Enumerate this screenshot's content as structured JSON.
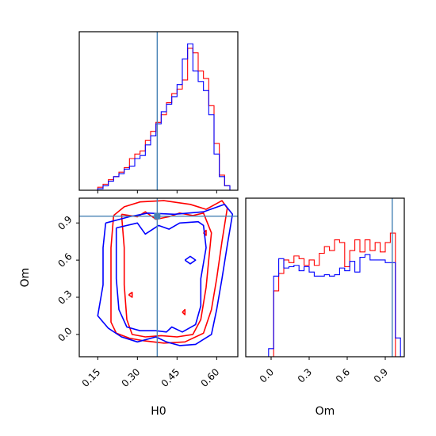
{
  "chart_data": {
    "type": "corner",
    "parameters": [
      "H0",
      "Om"
    ],
    "truth": {
      "H0": 0.375,
      "Om": 0.955
    },
    "colors": {
      "red": "#ff0000",
      "blue": "#0000ff",
      "truth": "#4682b4"
    },
    "panels": [
      {
        "id": "hist-H0",
        "type": "histogram",
        "xlim": [
          0.08,
          0.68
        ],
        "x_ticks": [
          0.15,
          0.3,
          0.45,
          0.6
        ],
        "bin_edges": [
          0.15,
          0.17,
          0.19,
          0.21,
          0.23,
          0.25,
          0.27,
          0.29,
          0.31,
          0.33,
          0.35,
          0.37,
          0.39,
          0.41,
          0.43,
          0.45,
          0.47,
          0.49,
          0.51,
          0.53,
          0.55,
          0.57,
          0.59,
          0.61,
          0.63,
          0.65
        ],
        "series": [
          {
            "color": "red",
            "values": [
              0.02,
              0.04,
              0.07,
              0.09,
              0.12,
              0.15,
              0.21,
              0.24,
              0.26,
              0.33,
              0.39,
              0.45,
              0.5,
              0.58,
              0.64,
              0.67,
              0.73,
              0.94,
              0.91,
              0.79,
              0.74,
              0.56,
              0.31,
              0.1,
              0.03
            ]
          },
          {
            "color": "blue",
            "values": [
              0.01,
              0.03,
              0.06,
              0.09,
              0.11,
              0.14,
              0.16,
              0.21,
              0.23,
              0.3,
              0.36,
              0.44,
              0.52,
              0.57,
              0.62,
              0.7,
              0.87,
              0.97,
              0.79,
              0.72,
              0.66,
              0.5,
              0.24,
              0.09,
              0.03
            ]
          }
        ]
      },
      {
        "id": "hist-Om",
        "type": "histogram",
        "xlim": [
          -0.2,
          1.05
        ],
        "x_ticks": [
          0.0,
          0.3,
          0.6,
          0.9
        ],
        "x_tick_labels": [
          "0.0",
          "0.3",
          "0.6",
          "0.9"
        ],
        "xlabel": "Om",
        "bin_edges": [
          -0.02,
          0.02,
          0.06,
          0.1,
          0.14,
          0.18,
          0.22,
          0.26,
          0.3,
          0.34,
          0.38,
          0.42,
          0.46,
          0.5,
          0.54,
          0.58,
          0.62,
          0.66,
          0.7,
          0.74,
          0.78,
          0.82,
          0.86,
          0.9,
          0.94,
          0.98,
          1.02
        ],
        "series": [
          {
            "color": "red",
            "values": [
              0.0,
              0.49,
              0.62,
              0.72,
              0.7,
              0.75,
              0.73,
              0.68,
              0.72,
              0.68,
              0.77,
              0.82,
              0.79,
              0.87,
              0.85,
              0.67,
              0.79,
              0.87,
              0.78,
              0.87,
              0.79,
              0.85,
              0.78,
              0.85,
              0.92,
              0.0
            ]
          },
          {
            "color": "blue",
            "values": [
              0.06,
              0.6,
              0.73,
              0.66,
              0.67,
              0.68,
              0.64,
              0.67,
              0.63,
              0.6,
              0.6,
              0.61,
              0.6,
              0.61,
              0.66,
              0.64,
              0.71,
              0.63,
              0.74,
              0.76,
              0.72,
              0.72,
              0.72,
              0.7,
              0.7,
              0.14
            ]
          }
        ]
      },
      {
        "id": "contour-H0-Om",
        "type": "contour",
        "xlim": [
          0.08,
          0.68
        ],
        "ylim": [
          -0.18,
          1.1
        ],
        "x_ticks": [
          0.15,
          0.3,
          0.45,
          0.6
        ],
        "x_tick_labels": [
          "0.15",
          "0.30",
          "0.45",
          "0.60"
        ],
        "y_ticks": [
          0.0,
          0.3,
          0.6,
          0.9
        ],
        "y_tick_labels": [
          "0.0",
          "0.3",
          "0.6",
          "0.9"
        ],
        "xlabel": "H0",
        "ylabel": "Om",
        "contours": [
          {
            "color": "red",
            "points": [
              [
                0.21,
                0.96
              ],
              [
                0.25,
                1.03
              ],
              [
                0.31,
                1.07
              ],
              [
                0.4,
                1.08
              ],
              [
                0.5,
                1.05
              ],
              [
                0.56,
                1.01
              ],
              [
                0.62,
                1.08
              ],
              [
                0.64,
                1.02
              ],
              [
                0.62,
                0.75
              ],
              [
                0.6,
                0.45
              ],
              [
                0.58,
                0.2
              ],
              [
                0.55,
                0.01
              ],
              [
                0.48,
                -0.06
              ],
              [
                0.4,
                -0.07
              ],
              [
                0.32,
                -0.05
              ],
              [
                0.27,
                -0.03
              ],
              [
                0.22,
                0.01
              ],
              [
                0.2,
                0.1
              ],
              [
                0.2,
                0.4
              ],
              [
                0.2,
                0.7
              ],
              [
                0.21,
                0.96
              ]
            ]
          },
          {
            "color": "red",
            "points": [
              [
                0.24,
                0.97
              ],
              [
                0.3,
                0.95
              ],
              [
                0.33,
                0.99
              ],
              [
                0.37,
                0.93
              ],
              [
                0.42,
                0.95
              ],
              [
                0.46,
                0.98
              ],
              [
                0.51,
                0.96
              ],
              [
                0.55,
                0.98
              ],
              [
                0.58,
                0.82
              ],
              [
                0.57,
                0.6
              ],
              [
                0.56,
                0.38
              ],
              [
                0.54,
                0.12
              ],
              [
                0.51,
                0.0
              ],
              [
                0.45,
                -0.02
              ],
              [
                0.39,
                -0.01
              ],
              [
                0.33,
                -0.02
              ],
              [
                0.28,
                0.0
              ],
              [
                0.26,
                0.12
              ],
              [
                0.25,
                0.4
              ],
              [
                0.25,
                0.7
              ],
              [
                0.24,
                0.97
              ]
            ]
          },
          {
            "color": "red",
            "points": [
              [
                0.267,
                0.32
              ],
              [
                0.28,
                0.34
              ],
              [
                0.28,
                0.3
              ],
              [
                0.267,
                0.32
              ]
            ]
          },
          {
            "color": "red",
            "points": [
              [
                0.55,
                0.82
              ],
              [
                0.56,
                0.84
              ],
              [
                0.56,
                0.8
              ],
              [
                0.55,
                0.82
              ]
            ]
          },
          {
            "color": "red",
            "points": [
              [
                0.47,
                0.18
              ],
              [
                0.48,
                0.2
              ],
              [
                0.48,
                0.16
              ],
              [
                0.47,
                0.18
              ]
            ]
          },
          {
            "color": "blue",
            "points": [
              [
                0.18,
                0.9
              ],
              [
                0.27,
                0.95
              ],
              [
                0.34,
                0.98
              ],
              [
                0.44,
                0.97
              ],
              [
                0.55,
                0.99
              ],
              [
                0.63,
                1.05
              ],
              [
                0.66,
                0.97
              ],
              [
                0.64,
                0.72
              ],
              [
                0.62,
                0.45
              ],
              [
                0.6,
                0.2
              ],
              [
                0.58,
                0.0
              ],
              [
                0.52,
                -0.08
              ],
              [
                0.46,
                -0.09
              ],
              [
                0.41,
                -0.06
              ],
              [
                0.37,
                -0.02
              ],
              [
                0.3,
                -0.06
              ],
              [
                0.24,
                -0.02
              ],
              [
                0.19,
                0.05
              ],
              [
                0.15,
                0.15
              ],
              [
                0.17,
                0.4
              ],
              [
                0.17,
                0.7
              ],
              [
                0.18,
                0.9
              ]
            ]
          },
          {
            "color": "blue",
            "points": [
              [
                0.22,
                0.86
              ],
              [
                0.3,
                0.9
              ],
              [
                0.33,
                0.81
              ],
              [
                0.38,
                0.88
              ],
              [
                0.42,
                0.85
              ],
              [
                0.46,
                0.9
              ],
              [
                0.53,
                0.91
              ],
              [
                0.55,
                0.88
              ],
              [
                0.56,
                0.7
              ],
              [
                0.54,
                0.45
              ],
              [
                0.54,
                0.23
              ],
              [
                0.52,
                0.08
              ],
              [
                0.47,
                0.02
              ],
              [
                0.43,
                0.06
              ],
              [
                0.41,
                0.02
              ],
              [
                0.37,
                0.03
              ],
              [
                0.31,
                0.03
              ],
              [
                0.26,
                0.06
              ],
              [
                0.23,
                0.2
              ],
              [
                0.22,
                0.45
              ],
              [
                0.22,
                0.86
              ]
            ]
          },
          {
            "color": "blue",
            "points": [
              [
                0.48,
                0.6
              ],
              [
                0.5,
                0.63
              ],
              [
                0.52,
                0.6
              ],
              [
                0.5,
                0.57
              ],
              [
                0.48,
                0.6
              ]
            ]
          }
        ]
      }
    ]
  }
}
